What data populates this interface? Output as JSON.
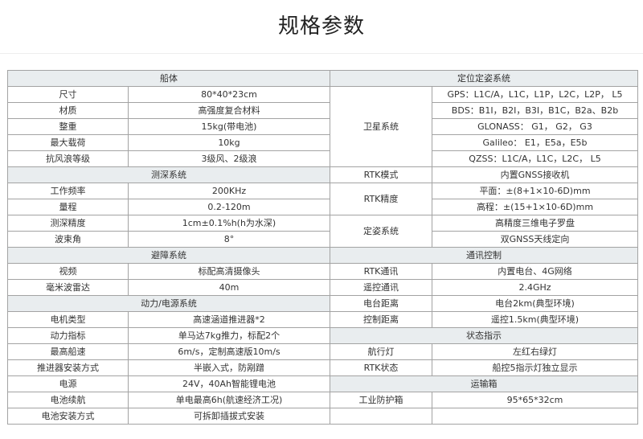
{
  "page_title": "规格参数",
  "left": {
    "sections": [
      {
        "title": "船体",
        "rows": [
          [
            "尺寸",
            "80*40*23cm"
          ],
          [
            "材质",
            "高强度复合材料"
          ],
          [
            "整重",
            "15kg(带电池)"
          ],
          [
            "最大载荷",
            "10kg"
          ],
          [
            "抗风浪等级",
            "3级风、2级浪"
          ]
        ]
      },
      {
        "title": "测深系统",
        "rows": [
          [
            "工作频率",
            "200KHz"
          ],
          [
            "量程",
            "0.2-120m"
          ],
          [
            "测深精度",
            "1cm±0.1%h(h为水深)"
          ],
          [
            "波束角",
            "8°"
          ]
        ]
      },
      {
        "title": "避障系统",
        "rows": [
          [
            "视频",
            "标配高清摄像头"
          ],
          [
            "毫米波雷达",
            "40m"
          ]
        ]
      },
      {
        "title": "动力/电源系统",
        "rows": [
          [
            "电机类型",
            "高速涵道推进器*2"
          ],
          [
            "动力指标",
            "单马达7kg推力，标配2个"
          ],
          [
            "最高船速",
            "6m/s，定制高速版10m/s"
          ],
          [
            "推进器安装方式",
            "半嵌入式，防剐蹭"
          ],
          [
            "电源",
            "24V，40Ah智能锂电池"
          ],
          [
            "电池续航",
            "单电最高6h(航速经济工况)"
          ],
          [
            "电池安装方式",
            "可拆卸插拔式安装"
          ]
        ]
      }
    ]
  },
  "right": {
    "sections": [
      {
        "title": "定位定姿系统",
        "groups": [
          {
            "label": "卫星系统",
            "values": [
              "GPS：L1C/A，L1C，L1P，L2C，L2P， L5",
              "BDS：B1I，B2I，B3I，B1C，B2a、B2b",
              "GLONASS： G1， G2， G3",
              "Galileo： E1，E5a，E5b",
              "QZSS：L1C/A，L1C，L2C， L5"
            ]
          },
          {
            "label": "RTK模式",
            "values": [
              "内置GNSS接收机"
            ]
          },
          {
            "label": "RTK精度",
            "values": [
              "平面：±(8+1×10-6D)mm",
              "高程：±(15+1×10-6D)mm"
            ]
          },
          {
            "label": "定姿系统",
            "values": [
              "高精度三维电子罗盘",
              "双GNSS天线定向"
            ]
          }
        ]
      },
      {
        "title": "通讯控制",
        "groups": [
          {
            "label": "RTK通讯",
            "values": [
              "内置电台、4G网络"
            ]
          },
          {
            "label": "遥控通讯",
            "values": [
              "2.4GHz"
            ]
          },
          {
            "label": "电台距离",
            "values": [
              "电台2km(典型环境)"
            ]
          },
          {
            "label": "控制距离",
            "values": [
              "遥控1.5km(典型环境)"
            ]
          }
        ]
      },
      {
        "title": "状态指示",
        "groups": [
          {
            "label": "航行灯",
            "values": [
              "左红右绿灯"
            ]
          },
          {
            "label": "RTK状态",
            "values": [
              "船控5指示灯独立显示"
            ]
          }
        ]
      },
      {
        "title": "运输箱",
        "groups": [
          {
            "label": "工业防护箱",
            "values": [
              "95*65*32cm"
            ]
          },
          {
            "label": "",
            "values": [
              ""
            ]
          }
        ]
      }
    ]
  }
}
